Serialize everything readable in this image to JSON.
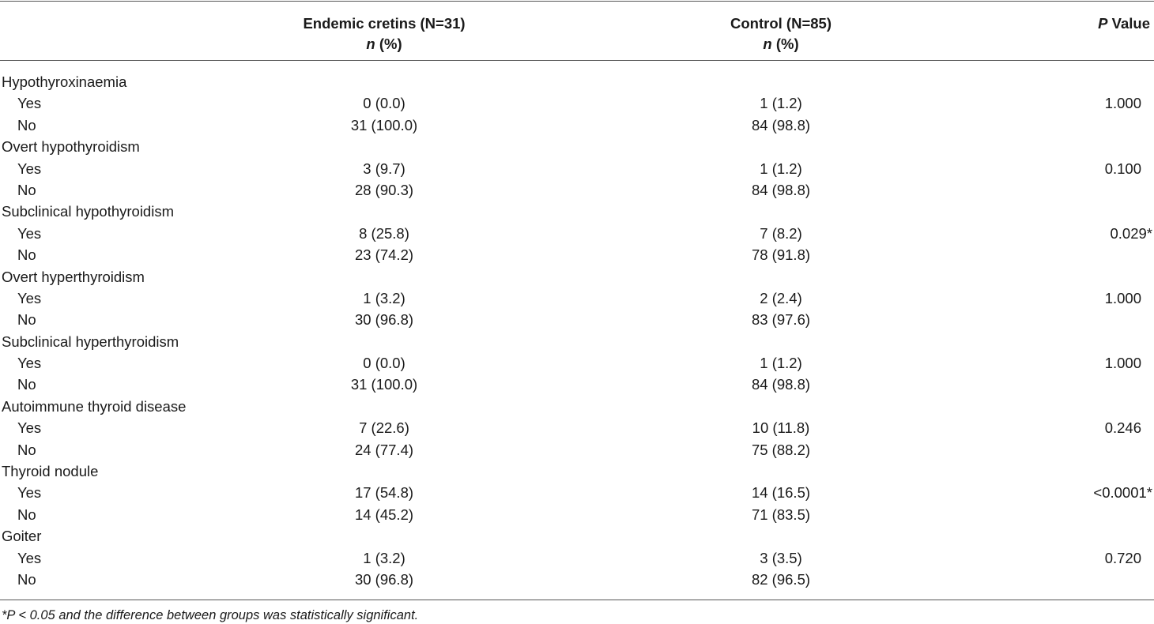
{
  "header": {
    "group1_title": "Endemic cretins (N=31)",
    "group2_title": "Control (N=85)",
    "n_label": "n",
    "pct_label": "(%)",
    "p_label_italic": "P",
    "p_label_rest": "Value"
  },
  "rows": [
    {
      "label": "Hypothyroxinaemia",
      "yes": [
        "0 (0.0)",
        "1 (1.2)"
      ],
      "no": [
        "31 (100.0)",
        "84 (98.8)"
      ],
      "p": "1.000"
    },
    {
      "label": "Overt hypothyroidism",
      "yes": [
        "3 (9.7)",
        "1 (1.2)"
      ],
      "no": [
        "28 (90.3)",
        "84 (98.8)"
      ],
      "p": "0.100"
    },
    {
      "label": "Subclinical hypothyroidism",
      "yes": [
        "8 (25.8)",
        "7 (8.2)"
      ],
      "no": [
        "23 (74.2)",
        "78 (91.8)"
      ],
      "p": "0.029*"
    },
    {
      "label": "Overt hyperthyroidism",
      "yes": [
        "1 (3.2)",
        "2 (2.4)"
      ],
      "no": [
        "30 (96.8)",
        "83 (97.6)"
      ],
      "p": "1.000"
    },
    {
      "label": "Subclinical hyperthyroidism",
      "yes": [
        "0 (0.0)",
        "1 (1.2)"
      ],
      "no": [
        "31 (100.0)",
        "84 (98.8)"
      ],
      "p": "1.000"
    },
    {
      "label": "Autoimmune thyroid disease",
      "yes": [
        "7 (22.6)",
        "10 (11.8)"
      ],
      "no": [
        "24 (77.4)",
        "75 (88.2)"
      ],
      "p": "0.246"
    },
    {
      "label": "Thyroid nodule",
      "yes": [
        "17 (54.8)",
        "14 (16.5)"
      ],
      "no": [
        "14 (45.2)",
        "71 (83.5)"
      ],
      "p": "<0.0001*"
    },
    {
      "label": "Goiter",
      "yes": [
        "1 (3.2)",
        "3 (3.5)"
      ],
      "no": [
        "30 (96.8)",
        "82 (96.5)"
      ],
      "p": "0.720"
    }
  ],
  "yes_label": "Yes",
  "no_label": "No",
  "footnote": "*P < 0.05 and the difference between groups was statistically significant."
}
